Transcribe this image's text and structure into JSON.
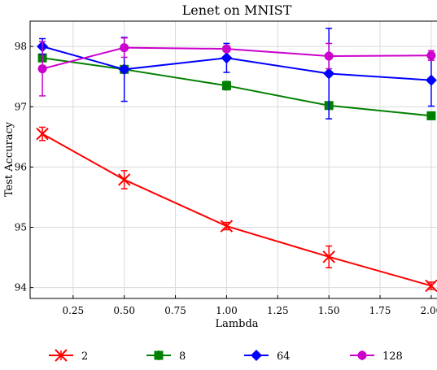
{
  "chart_data": {
    "type": "line",
    "title": "Lenet on MNIST",
    "xlabel": "Lambda",
    "ylabel": "Test Accuracy",
    "xlim": [
      0.04,
      2.06
    ],
    "ylim": [
      93.82,
      98.42
    ],
    "xticks": [
      0.25,
      0.5,
      0.75,
      1.0,
      1.25,
      1.5,
      1.75,
      2.0
    ],
    "xtick_labels": [
      "0.25",
      "0.50",
      "0.75",
      "1.00",
      "1.25",
      "1.50",
      "1.75",
      "2.00"
    ],
    "yticks": [
      94,
      95,
      96,
      97,
      98
    ],
    "ytick_labels": [
      "94",
      "95",
      "96",
      "97",
      "98"
    ],
    "grid": true,
    "legend_position": "bottom",
    "x": [
      0.1,
      0.5,
      1.0,
      1.5,
      2.0
    ],
    "series": [
      {
        "name": "2",
        "color": "#ff0000",
        "marker": "x",
        "values": [
          96.55,
          95.79,
          95.02,
          94.51,
          94.03
        ],
        "errors": [
          0.11,
          0.15,
          0.06,
          0.18,
          0.06
        ]
      },
      {
        "name": "8",
        "color": "#008000",
        "marker": "square",
        "values": [
          97.81,
          97.62,
          97.35,
          97.02,
          96.85
        ],
        "errors": [
          0.04,
          0.04,
          0.07,
          0.04,
          0.03
        ]
      },
      {
        "name": "64",
        "color": "#0000ff",
        "marker": "diamond",
        "values": [
          98.0,
          97.62,
          97.81,
          97.55,
          97.44
        ],
        "errors": [
          0.13,
          0.53,
          0.24,
          0.75,
          0.43
        ]
      },
      {
        "name": "128",
        "color": "#cc00cc",
        "marker": "circle",
        "values": [
          97.63,
          97.98,
          97.96,
          97.84,
          97.85
        ],
        "errors": [
          0.45,
          0.16,
          0.05,
          0.21,
          0.08
        ]
      }
    ]
  }
}
